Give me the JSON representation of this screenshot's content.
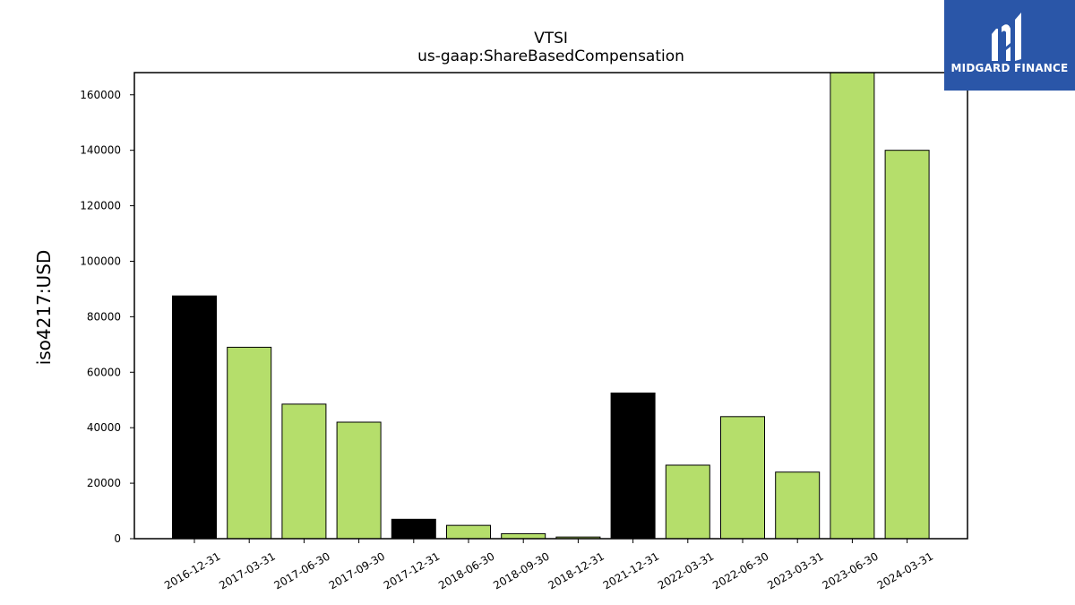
{
  "chart_data": {
    "type": "bar",
    "title": "VTSI",
    "subtitle": "us-gaap:ShareBasedCompensation",
    "ylabel": "iso4217:USD",
    "xlabel": "",
    "ylim": [
      0,
      168000
    ],
    "yticks": [
      0,
      20000,
      40000,
      60000,
      80000,
      100000,
      120000,
      140000,
      160000
    ],
    "grid": false,
    "categories": [
      "2016-12-31",
      "2017-03-31",
      "2017-06-30",
      "2017-09-30",
      "2017-12-31",
      "2018-06-30",
      "2018-09-30",
      "2018-12-31",
      "2021-12-31",
      "2022-03-31",
      "2022-06-30",
      "2023-03-31",
      "2023-06-30",
      "2024-03-31"
    ],
    "values": [
      87500,
      69000,
      48500,
      42000,
      7000,
      4800,
      1800,
      600,
      52500,
      26500,
      44000,
      24000,
      168000,
      140000
    ],
    "bar_colors": [
      "#000000",
      "#b5de6b",
      "#b5de6b",
      "#b5de6b",
      "#000000",
      "#b5de6b",
      "#b5de6b",
      "#b5de6b",
      "#000000",
      "#b5de6b",
      "#b5de6b",
      "#b5de6b",
      "#b5de6b",
      "#b5de6b"
    ]
  },
  "logo": {
    "text": "MIDGARD FINANCE",
    "color": "#2a56a8"
  }
}
